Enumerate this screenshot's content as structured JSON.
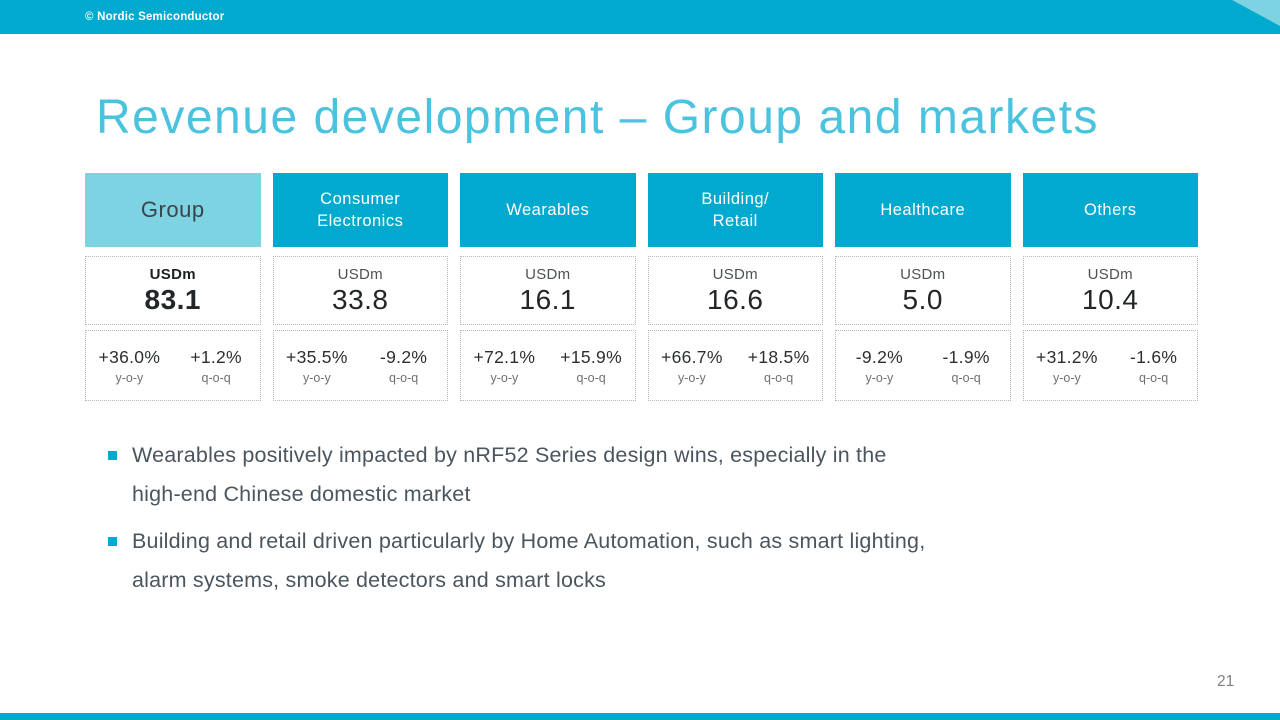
{
  "header": {
    "copyright": "© Nordic Semiconductor"
  },
  "title": "Revenue development – Group and markets",
  "table": {
    "unit_label": "USDm",
    "labels": {
      "yoy": "y-o-y",
      "qoq": "q-o-q"
    },
    "columns": [
      {
        "name": "Group",
        "value": "83.1",
        "yoy": "+36.0%",
        "qoq": "+1.2%"
      },
      {
        "name": "Consumer\nElectronics",
        "value": "33.8",
        "yoy": "+35.5%",
        "qoq": "-9.2%"
      },
      {
        "name": "Wearables",
        "value": "16.1",
        "yoy": "+72.1%",
        "qoq": "+15.9%"
      },
      {
        "name": "Building/\nRetail",
        "value": "16.6",
        "yoy": "+66.7%",
        "qoq": "+18.5%"
      },
      {
        "name": "Healthcare",
        "value": "5.0",
        "yoy": "-9.2%",
        "qoq": "-1.9%"
      },
      {
        "name": "Others",
        "value": "10.4",
        "yoy": "+31.2%",
        "qoq": "-1.6%"
      }
    ]
  },
  "bullets": [
    {
      "text": "Wearables positively impacted by nRF52 Series design wins, especially in the\nhigh-end Chinese domestic market"
    },
    {
      "text": "Building and retail driven particularly by Home Automation, such as smart lighting,\nalarm systems, smoke detectors and smart locks"
    }
  ],
  "page_number": "21",
  "colors": {
    "brand": "#00a9ce",
    "light_teal": "#7ed3e2",
    "title": "#4bc2de"
  }
}
